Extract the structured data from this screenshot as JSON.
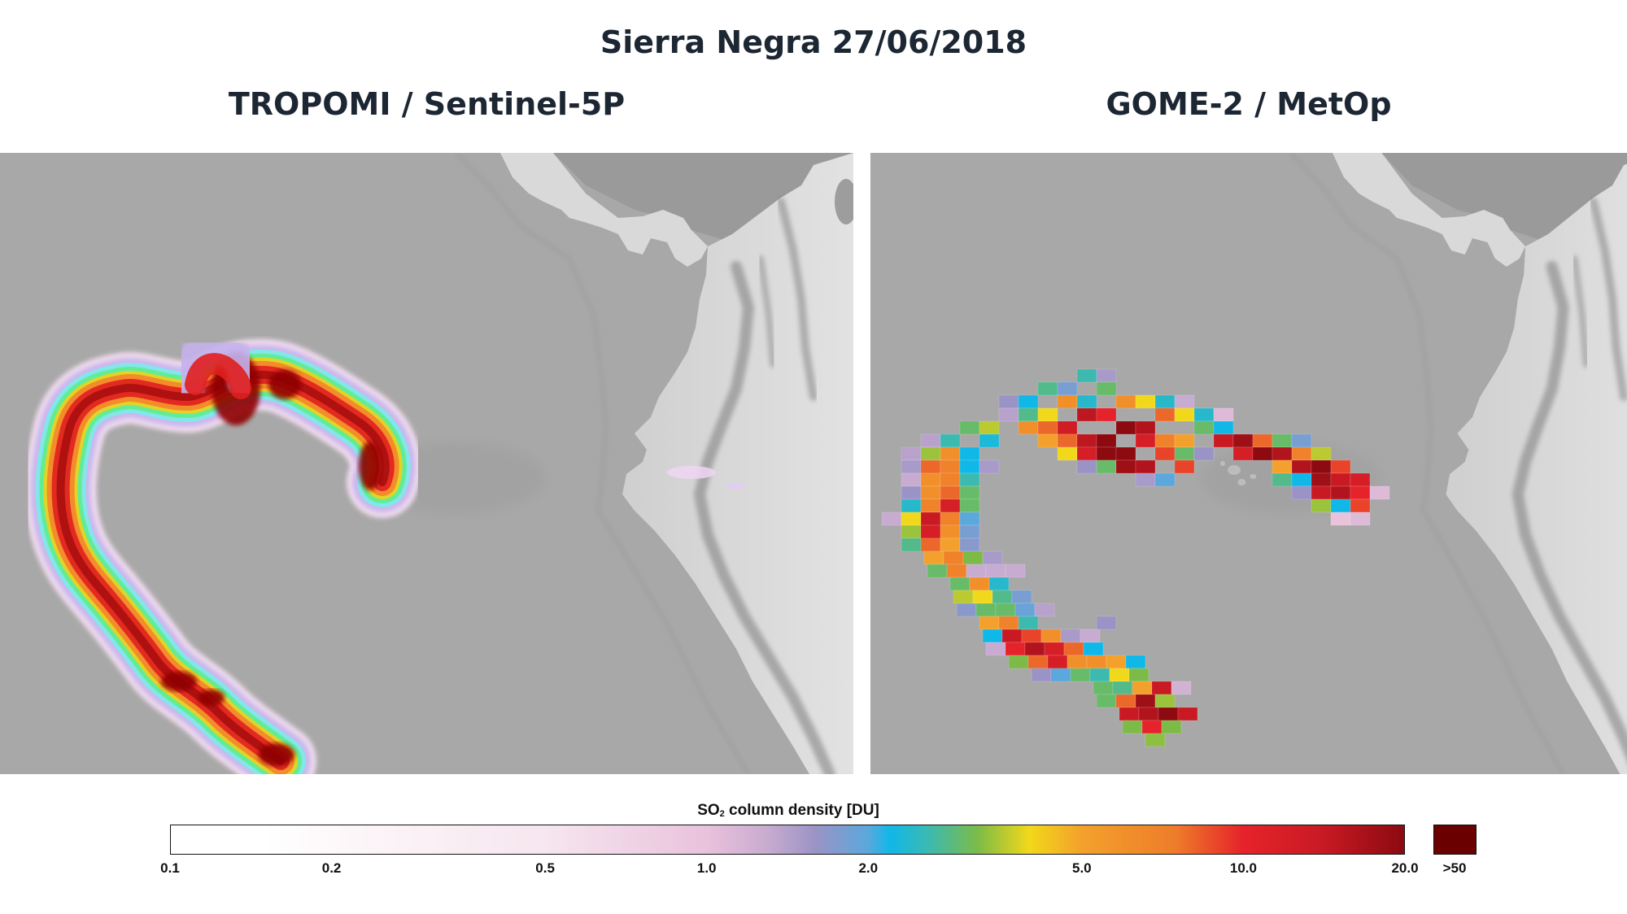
{
  "header": {
    "title": "Sierra Negra 27/06/2018"
  },
  "panels": [
    {
      "id": "left",
      "title": "TROPOMI / Sentinel-5P",
      "instrument": "TROPOMI",
      "platform": "Sentinel-5P"
    },
    {
      "id": "right",
      "title": "GOME-2 / MetOp",
      "instrument": "GOME-2",
      "platform": "MetOp"
    }
  ],
  "map_style": {
    "ocean_color": "#a8a8a8",
    "deep_ocean_color": "#9f9f9f",
    "caribbean_color": "#9a9a9a",
    "land_color": "#d9d9d9",
    "mountain_color": "#7c7c7c"
  },
  "colorbar": {
    "title_prefix": "SO",
    "title_sub": "2",
    "title_suffix": " column density [DU]",
    "scale": "log",
    "min": 0.1,
    "max": 20.0,
    "ticks": [
      {
        "label": "0.1",
        "value": 0.1
      },
      {
        "label": "0.2",
        "value": 0.2
      },
      {
        "label": "0.5",
        "value": 0.5
      },
      {
        "label": "1.0",
        "value": 1.0
      },
      {
        "label": "2.0",
        "value": 2.0
      },
      {
        "label": "5.0",
        "value": 5.0
      },
      {
        "label": "10.0",
        "value": 10.0
      },
      {
        "label": "20.0",
        "value": 20.0
      }
    ],
    "overflow_label": ">50",
    "overflow_color": "#6b0000",
    "stops": [
      {
        "v": 0.1,
        "c": "#ffffff"
      },
      {
        "v": 0.15,
        "c": "#ffffff"
      },
      {
        "v": 0.2,
        "c": "#fdf8fa"
      },
      {
        "v": 0.5,
        "c": "#f6e6ef"
      },
      {
        "v": 1.0,
        "c": "#e9c2dc"
      },
      {
        "v": 1.3,
        "c": "#c8abd0"
      },
      {
        "v": 1.6,
        "c": "#9a93c6"
      },
      {
        "v": 2.0,
        "c": "#5aa8dc"
      },
      {
        "v": 2.2,
        "c": "#10b8e8"
      },
      {
        "v": 2.6,
        "c": "#3cbab0"
      },
      {
        "v": 3.2,
        "c": "#7cbb48"
      },
      {
        "v": 4.0,
        "c": "#f2d81a"
      },
      {
        "v": 5.0,
        "c": "#f3a12c"
      },
      {
        "v": 7.5,
        "c": "#ee7c2a"
      },
      {
        "v": 10.0,
        "c": "#e6232a"
      },
      {
        "v": 14.0,
        "c": "#c91a24"
      },
      {
        "v": 20.0,
        "c": "#8c0a10"
      }
    ]
  },
  "chart_data": {
    "type": "heatmap",
    "title": "Sierra Negra 27/06/2018",
    "subplots": [
      {
        "title": "TROPOMI / Sentinel-5P",
        "description": "High-resolution SO2 plume from Sierra Negra (Galapagos) forming a hook shape: westward from Galapagos then curving south-southeast; max values >20 DU near plume centre and southern tip; small weak (<1 DU) features near Colombian coast"
      },
      {
        "title": "GOME-2 / MetOp",
        "description": "Coarse pixel SO2 plume with the same hook shape; maximum ~20 DU pixels near plume centre, east end near Galapagos and southern tip"
      }
    ],
    "colorbar_label": "SO2 column density [DU]",
    "colorbar_ticks": [
      0.1,
      0.2,
      0.5,
      1.0,
      2.0,
      5.0,
      10.0,
      20.0
    ],
    "colorbar_overflow": ">50",
    "scale": "log"
  }
}
